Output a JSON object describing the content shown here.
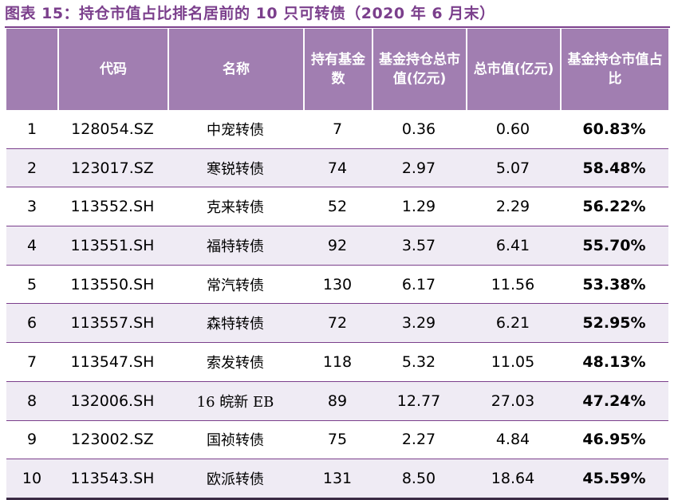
{
  "caption": "图表 15：持仓市值占比排名居前的 10 只可转债（2020 年 6 月末）",
  "colors": {
    "header_bg": "#A17EB1",
    "caption_text": "#7B3F8C",
    "alt_row_bg": "#EFEBF4"
  },
  "headers": {
    "index": "",
    "code": "代码",
    "name": "名称",
    "fund_count": "持有基金数",
    "fund_value": "基金持仓总市值(亿元)",
    "total_value": "总市值(亿元)",
    "ratio": "基金持仓市值占比"
  },
  "rows": [
    {
      "index": "1",
      "code": "128054.SZ",
      "name": "中宠转债",
      "fund_count": "7",
      "fund_value": "0.36",
      "total_value": "0.60",
      "ratio": "60.83%"
    },
    {
      "index": "2",
      "code": "123017.SZ",
      "name": "寒锐转债",
      "fund_count": "74",
      "fund_value": "2.97",
      "total_value": "5.07",
      "ratio": "58.48%"
    },
    {
      "index": "3",
      "code": "113552.SH",
      "name": "克来转债",
      "fund_count": "52",
      "fund_value": "1.29",
      "total_value": "2.29",
      "ratio": "56.22%"
    },
    {
      "index": "4",
      "code": "113551.SH",
      "name": "福特转债",
      "fund_count": "92",
      "fund_value": "3.57",
      "total_value": "6.41",
      "ratio": "55.70%"
    },
    {
      "index": "5",
      "code": "113550.SH",
      "name": "常汽转债",
      "fund_count": "130",
      "fund_value": "6.17",
      "total_value": "11.56",
      "ratio": "53.38%"
    },
    {
      "index": "6",
      "code": "113557.SH",
      "name": "森特转债",
      "fund_count": "72",
      "fund_value": "3.29",
      "total_value": "6.21",
      "ratio": "52.95%"
    },
    {
      "index": "7",
      "code": "113547.SH",
      "name": "索发转债",
      "fund_count": "118",
      "fund_value": "5.32",
      "total_value": "11.05",
      "ratio": "48.13%"
    },
    {
      "index": "8",
      "code": "132006.SH",
      "name": "16 皖新 EB",
      "fund_count": "89",
      "fund_value": "12.77",
      "total_value": "27.03",
      "ratio": "47.24%"
    },
    {
      "index": "9",
      "code": "123002.SZ",
      "name": "国祯转债",
      "fund_count": "75",
      "fund_value": "2.27",
      "total_value": "4.84",
      "ratio": "46.95%"
    },
    {
      "index": "10",
      "code": "113543.SH",
      "name": "欧派转债",
      "fund_count": "131",
      "fund_value": "8.50",
      "total_value": "18.64",
      "ratio": "45.59%"
    }
  ]
}
